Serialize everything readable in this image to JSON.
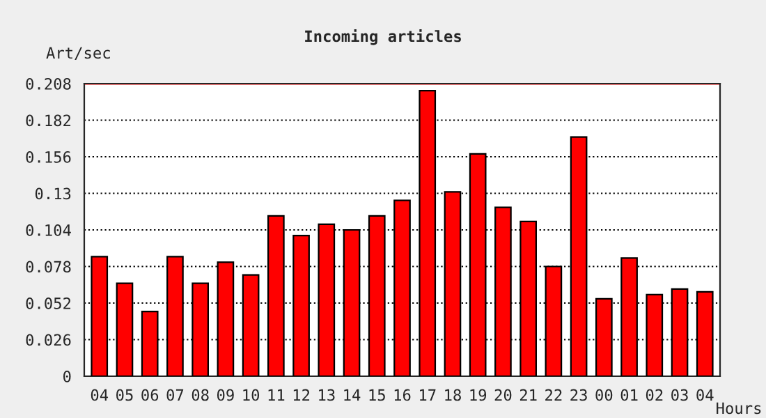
{
  "chart_data": {
    "type": "bar",
    "title": "Incoming articles",
    "ylabel": "Art/sec",
    "xlabel": "Hours",
    "categories": [
      "04",
      "05",
      "06",
      "07",
      "08",
      "09",
      "10",
      "11",
      "12",
      "13",
      "14",
      "15",
      "16",
      "17",
      "18",
      "19",
      "20",
      "21",
      "22",
      "23",
      "00",
      "01",
      "02",
      "03",
      "04"
    ],
    "values": [
      0.085,
      0.066,
      0.046,
      0.085,
      0.066,
      0.081,
      0.072,
      0.114,
      0.1,
      0.108,
      0.104,
      0.114,
      0.125,
      0.203,
      0.131,
      0.158,
      0.12,
      0.11,
      0.078,
      0.17,
      0.055,
      0.084,
      0.058,
      0.062,
      0.06
    ],
    "color": "#ff0000",
    "ylim": [
      0,
      0.208
    ],
    "yticks": [
      0,
      0.026,
      0.052,
      0.078,
      0.104,
      0.13,
      0.156,
      0.182,
      0.208
    ],
    "grid": "y",
    "line_style": "dotted",
    "ref_lines": [
      {
        "axis": "y",
        "value": 0.208,
        "color": "#ff0000"
      }
    ]
  }
}
